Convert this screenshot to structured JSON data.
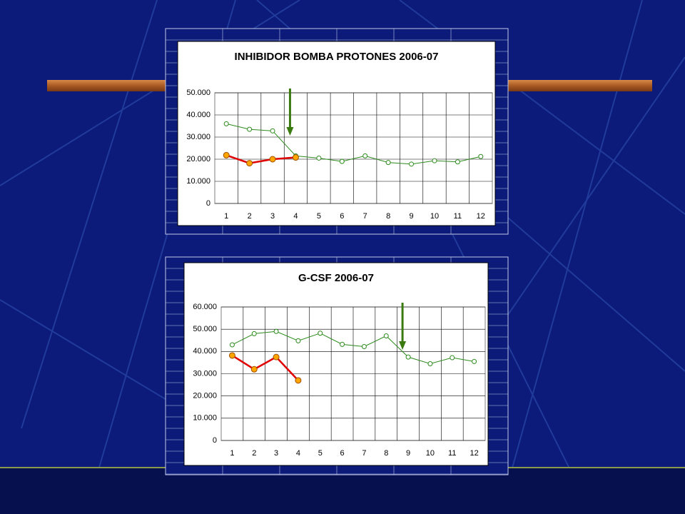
{
  "chart_data": [
    {
      "type": "line",
      "title": "INHIBIDOR BOMBA PROTONES 2006-07",
      "categories": [
        "1",
        "2",
        "3",
        "4",
        "5",
        "6",
        "7",
        "8",
        "9",
        "10",
        "11",
        "12"
      ],
      "series": [
        {
          "color": "#2e8b1e",
          "marker_fill": "#ffffff",
          "values": [
            36000,
            33500,
            32800,
            21500,
            20500,
            19000,
            21500,
            18500,
            17800,
            19300,
            18800,
            21200
          ]
        },
        {
          "color": "#e00000",
          "marker_fill": "#ffa500",
          "values": [
            21800,
            18200,
            20000,
            20800,
            null,
            null,
            null,
            null,
            null,
            null,
            null,
            null
          ]
        }
      ],
      "ylim": [
        0,
        50000
      ],
      "yticks": [
        0,
        {
          "value": 10000,
          "label": "10.000"
        },
        {
          "value": 20000,
          "label": "20.000"
        },
        {
          "value": 30000,
          "label": "30.000"
        },
        {
          "value": 40000,
          "label": "40.000"
        },
        {
          "value": 50000,
          "label": "50.000"
        }
      ],
      "grid": true
    },
    {
      "type": "line",
      "title": "G-CSF 2006-07",
      "categories": [
        "1",
        "2",
        "3",
        "4",
        "5",
        "6",
        "7",
        "8",
        "9",
        "10",
        "11",
        "12"
      ],
      "series": [
        {
          "color": "#2e8b1e",
          "marker_fill": "#ffffff",
          "values": [
            43000,
            48000,
            49000,
            44800,
            48200,
            43200,
            42200,
            47000,
            37500,
            34500,
            37200,
            35500
          ]
        },
        {
          "color": "#e00000",
          "marker_fill": "#ffa500",
          "values": [
            38200,
            32000,
            37500,
            27000,
            null,
            null,
            null,
            null,
            null,
            null,
            null,
            null
          ]
        }
      ],
      "ylim": [
        0,
        60000
      ],
      "yticks": [
        0,
        {
          "value": 10000,
          "label": "10.000"
        },
        {
          "value": 20000,
          "label": "20.000"
        },
        {
          "value": 30000,
          "label": "30.000"
        },
        {
          "value": 40000,
          "label": "40.000"
        },
        {
          "value": 50000,
          "label": "50.000"
        },
        {
          "value": 60000,
          "label": "60.000"
        }
      ],
      "grid": true
    }
  ]
}
